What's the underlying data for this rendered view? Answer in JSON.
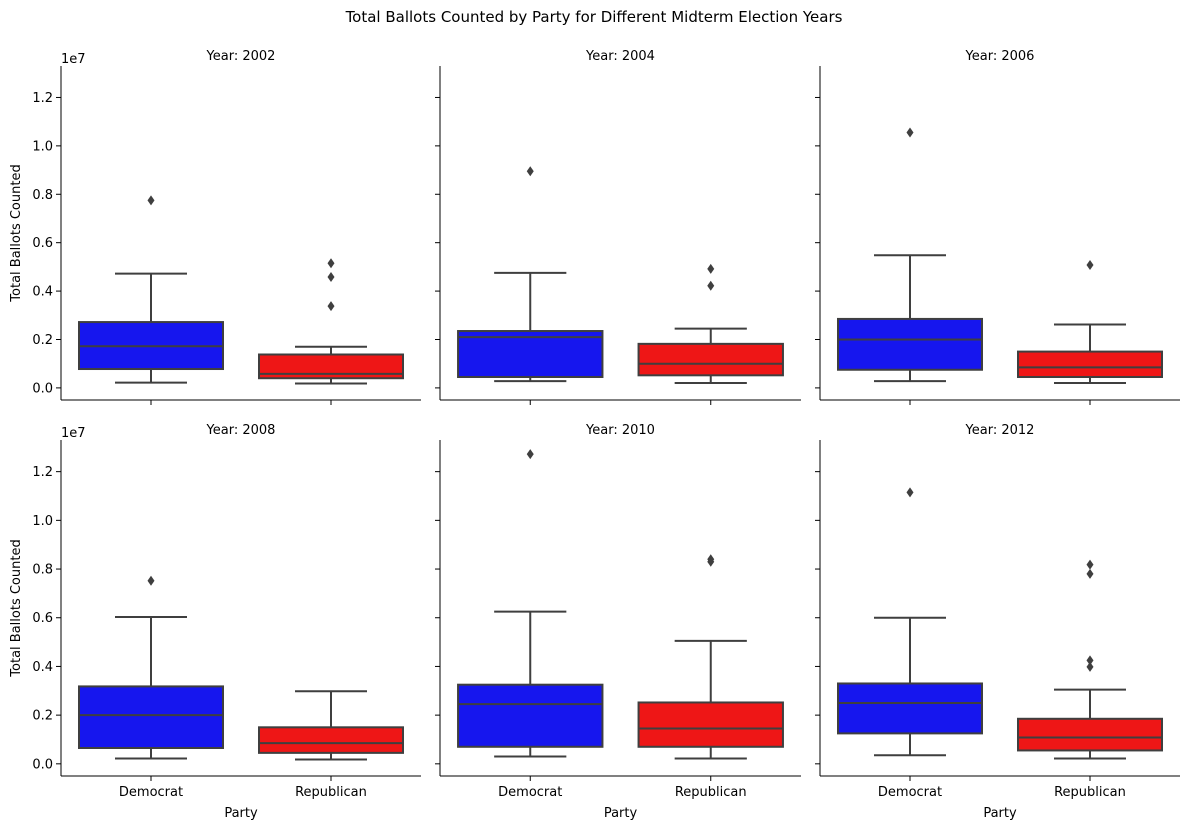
{
  "chart_data": {
    "type": "box",
    "title": "Total Ballots Counted by Party for Different Midterm Election Years",
    "xlabel": "Party",
    "ylabel": "Total Ballots Counted",
    "offset_text": "1e7",
    "categories": [
      "Democrat",
      "Republican"
    ],
    "colors": {
      "Democrat": "#1616ee",
      "Republican": "#ee1616",
      "line": "#3f3f3f"
    },
    "ylim": [
      -0.05,
      1.33
    ],
    "yticks": [
      0.0,
      0.2,
      0.4,
      0.6,
      0.8,
      1.0,
      1.2
    ],
    "ytick_labels": [
      "0.0",
      "0.2",
      "0.4",
      "0.6",
      "0.8",
      "1.0",
      "1.2"
    ],
    "grid": false,
    "panels": [
      {
        "title": "Year: 2002",
        "boxes": [
          {
            "party": "Democrat",
            "whisker_low": 0.022,
            "q1": 0.078,
            "median": 0.172,
            "q3": 0.272,
            "whisker_high": 0.472,
            "outliers": [
              0.775
            ]
          },
          {
            "party": "Republican",
            "whisker_low": 0.018,
            "q1": 0.04,
            "median": 0.058,
            "q3": 0.138,
            "whisker_high": 0.17,
            "outliers": [
              0.338,
              0.458,
              0.515
            ]
          }
        ]
      },
      {
        "title": "Year: 2004",
        "boxes": [
          {
            "party": "Democrat",
            "whisker_low": 0.028,
            "q1": 0.045,
            "median": 0.21,
            "q3": 0.235,
            "whisker_high": 0.475,
            "outliers": [
              0.895
            ]
          },
          {
            "party": "Republican",
            "whisker_low": 0.02,
            "q1": 0.052,
            "median": 0.1,
            "q3": 0.182,
            "whisker_high": 0.245,
            "outliers": [
              0.422,
              0.492
            ]
          }
        ]
      },
      {
        "title": "Year: 2006",
        "boxes": [
          {
            "party": "Democrat",
            "whisker_low": 0.028,
            "q1": 0.075,
            "median": 0.2,
            "q3": 0.285,
            "whisker_high": 0.548,
            "outliers": [
              1.055
            ]
          },
          {
            "party": "Republican",
            "whisker_low": 0.02,
            "q1": 0.045,
            "median": 0.085,
            "q3": 0.15,
            "whisker_high": 0.262,
            "outliers": [
              0.508
            ]
          }
        ]
      },
      {
        "title": "Year: 2008",
        "boxes": [
          {
            "party": "Democrat",
            "whisker_low": 0.022,
            "q1": 0.065,
            "median": 0.2,
            "q3": 0.318,
            "whisker_high": 0.603,
            "outliers": [
              0.752
            ]
          },
          {
            "party": "Republican",
            "whisker_low": 0.018,
            "q1": 0.045,
            "median": 0.085,
            "q3": 0.15,
            "whisker_high": 0.298,
            "outliers": []
          }
        ]
      },
      {
        "title": "Year: 2010",
        "boxes": [
          {
            "party": "Democrat",
            "whisker_low": 0.03,
            "q1": 0.07,
            "median": 0.245,
            "q3": 0.325,
            "whisker_high": 0.625,
            "outliers": [
              1.272
            ]
          },
          {
            "party": "Republican",
            "whisker_low": 0.022,
            "q1": 0.07,
            "median": 0.145,
            "q3": 0.252,
            "whisker_high": 0.505,
            "outliers": [
              0.83,
              0.84
            ]
          }
        ]
      },
      {
        "title": "Year: 2012",
        "boxes": [
          {
            "party": "Democrat",
            "whisker_low": 0.035,
            "q1": 0.125,
            "median": 0.25,
            "q3": 0.33,
            "whisker_high": 0.6,
            "outliers": [
              1.115
            ]
          },
          {
            "party": "Republican",
            "whisker_low": 0.022,
            "q1": 0.055,
            "median": 0.108,
            "q3": 0.185,
            "whisker_high": 0.305,
            "outliers": [
              0.398,
              0.425,
              0.78,
              0.818
            ]
          }
        ]
      }
    ]
  }
}
